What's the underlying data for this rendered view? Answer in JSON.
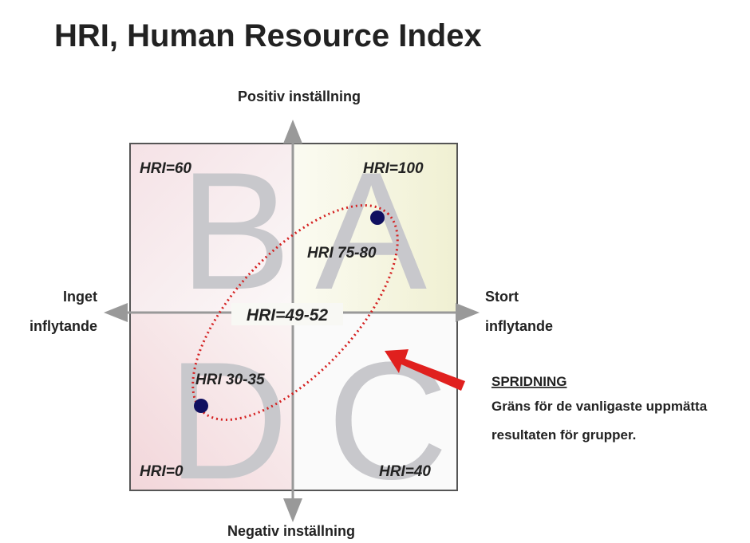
{
  "title": "HRI, Human Resource Index",
  "axes": {
    "top": "Positiv inställning",
    "bottom": "Negativ inställning",
    "left": [
      "Inget",
      "inflytande"
    ],
    "right": [
      "Stort",
      "inflytande"
    ]
  },
  "quadrants": [
    {
      "letter": "B",
      "label": "HRI=60"
    },
    {
      "letter": "A",
      "label": "HRI=100"
    },
    {
      "letter": "D",
      "label": "HRI=0"
    },
    {
      "letter": "C",
      "label": "HRI=40"
    }
  ],
  "center_label": "HRI=49-52",
  "points": [
    {
      "label": "HRI 75-80"
    },
    {
      "label": "HRI 30-35"
    }
  ],
  "annotation": {
    "heading": "SPRIDNING",
    "lines": [
      "Gräns för de vanligaste uppmätta",
      "resultaten för grupper."
    ]
  }
}
